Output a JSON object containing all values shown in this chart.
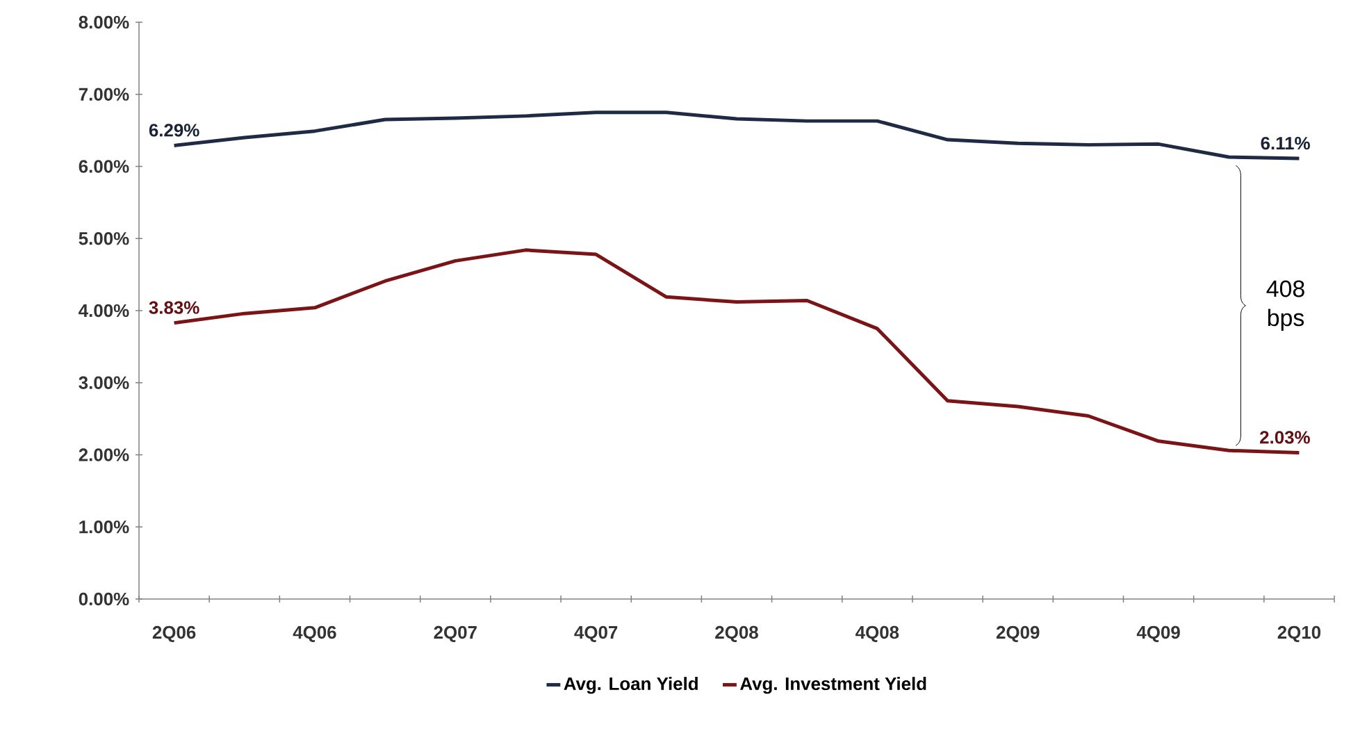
{
  "chart_data": {
    "type": "line",
    "categories": [
      "2Q06",
      null,
      "4Q06",
      null,
      "2Q07",
      null,
      "4Q07",
      null,
      "2Q08",
      null,
      "4Q08",
      null,
      "2Q09",
      null,
      "4Q09",
      null,
      "2Q10"
    ],
    "series": [
      {
        "name": "Avg. Loan Yield",
        "color": "#1f2a44",
        "values": [
          6.29,
          6.4,
          6.49,
          6.65,
          6.67,
          6.7,
          6.75,
          6.75,
          6.66,
          6.63,
          6.63,
          6.37,
          6.32,
          6.3,
          6.31,
          6.13,
          6.11
        ],
        "value_labels": [
          "6.29%",
          null,
          null,
          null,
          null,
          null,
          null,
          null,
          null,
          null,
          null,
          null,
          null,
          null,
          null,
          null,
          "6.11%"
        ]
      },
      {
        "name": "Avg. Investment Yield",
        "color": "#7b1416",
        "values": [
          3.83,
          3.96,
          4.04,
          4.41,
          4.69,
          4.84,
          4.78,
          4.19,
          4.12,
          4.14,
          3.75,
          2.75,
          2.67,
          2.54,
          2.19,
          2.06,
          2.03
        ],
        "value_labels": [
          "3.83%",
          null,
          null,
          null,
          null,
          null,
          null,
          null,
          null,
          null,
          null,
          null,
          null,
          null,
          null,
          null,
          "2.03%"
        ]
      }
    ],
    "ylim": [
      0,
      8
    ],
    "yticks": [
      {
        "value": 0,
        "label": "0.00%"
      },
      {
        "value": 1,
        "label": "1.00%"
      },
      {
        "value": 2,
        "label": "2.00%"
      },
      {
        "value": 3,
        "label": "3.00%"
      },
      {
        "value": 4,
        "label": "4.00%"
      },
      {
        "value": 5,
        "label": "5.00%"
      },
      {
        "value": 6,
        "label": "6.00%"
      },
      {
        "value": 7,
        "label": "7.00%"
      },
      {
        "value": 8,
        "label": "8.00%"
      }
    ],
    "annotations": [
      "408 bps"
    ],
    "grid": false,
    "legend": "bottom",
    "marker": "none",
    "line_style": "solid"
  }
}
